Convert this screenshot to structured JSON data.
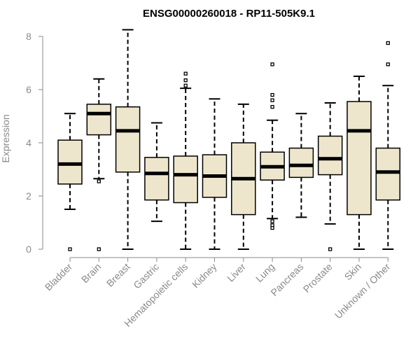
{
  "chart_data": {
    "type": "box",
    "title": "ENSG00000260018 - RP11-505K9.1",
    "xlabel": "",
    "ylabel": "Expression",
    "ylim": [
      0,
      8.3
    ],
    "yticks": [
      0,
      2,
      4,
      6,
      8
    ],
    "grid": false,
    "colors": {
      "box_fill": "#ede6cc",
      "stroke": "#000000",
      "axis_text": "#8a8a8a"
    },
    "categories": [
      "Bladder",
      "Brain",
      "Breast",
      "Gastric",
      "Hematopoietic cells",
      "Kidney",
      "Liver",
      "Lung",
      "Pancreas",
      "Prostate",
      "Skin",
      "Unknown / Other"
    ],
    "boxes": [
      {
        "label": "Bladder",
        "whisker_low": 1.5,
        "q1": 2.45,
        "median": 3.2,
        "q3": 4.1,
        "whisker_high": 5.1,
        "outliers": [
          0.0
        ]
      },
      {
        "label": "Brain",
        "whisker_low": 2.65,
        "q1": 4.3,
        "median": 5.1,
        "q3": 5.45,
        "whisker_high": 6.4,
        "outliers": [
          2.55,
          0.0
        ]
      },
      {
        "label": "Breast",
        "whisker_low": 0.0,
        "q1": 2.9,
        "median": 4.45,
        "q3": 5.35,
        "whisker_high": 8.25,
        "outliers": []
      },
      {
        "label": "Gastric",
        "whisker_low": 1.05,
        "q1": 1.85,
        "median": 2.85,
        "q3": 3.45,
        "whisker_high": 4.75,
        "outliers": []
      },
      {
        "label": "Hematopoietic cells",
        "whisker_low": 0.0,
        "q1": 1.75,
        "median": 2.8,
        "q3": 3.5,
        "whisker_high": 6.05,
        "outliers": [
          6.15,
          6.35,
          6.6
        ]
      },
      {
        "label": "Kidney",
        "whisker_low": 0.0,
        "q1": 1.95,
        "median": 2.75,
        "q3": 3.55,
        "whisker_high": 5.65,
        "outliers": []
      },
      {
        "label": "Liver",
        "whisker_low": 0.0,
        "q1": 1.3,
        "median": 2.65,
        "q3": 4.0,
        "whisker_high": 5.45,
        "outliers": []
      },
      {
        "label": "Lung",
        "whisker_low": 1.15,
        "q1": 2.6,
        "median": 3.1,
        "q3": 3.65,
        "whisker_high": 4.85,
        "outliers": [
          5.35,
          5.6,
          5.8,
          6.95,
          1.05,
          0.9,
          0.8
        ]
      },
      {
        "label": "Pancreas",
        "whisker_low": 1.2,
        "q1": 2.7,
        "median": 3.15,
        "q3": 3.8,
        "whisker_high": 5.1,
        "outliers": []
      },
      {
        "label": "Prostate",
        "whisker_low": 0.95,
        "q1": 2.8,
        "median": 3.4,
        "q3": 4.25,
        "whisker_high": 5.5,
        "outliers": [
          0.0
        ]
      },
      {
        "label": "Skin",
        "whisker_low": 0.0,
        "q1": 1.3,
        "median": 4.45,
        "q3": 5.55,
        "whisker_high": 6.5,
        "outliers": []
      },
      {
        "label": "Unknown / Other",
        "whisker_low": 0.0,
        "q1": 1.85,
        "median": 2.9,
        "q3": 3.8,
        "whisker_high": 6.15,
        "outliers": [
          6.95,
          7.75
        ]
      }
    ]
  }
}
